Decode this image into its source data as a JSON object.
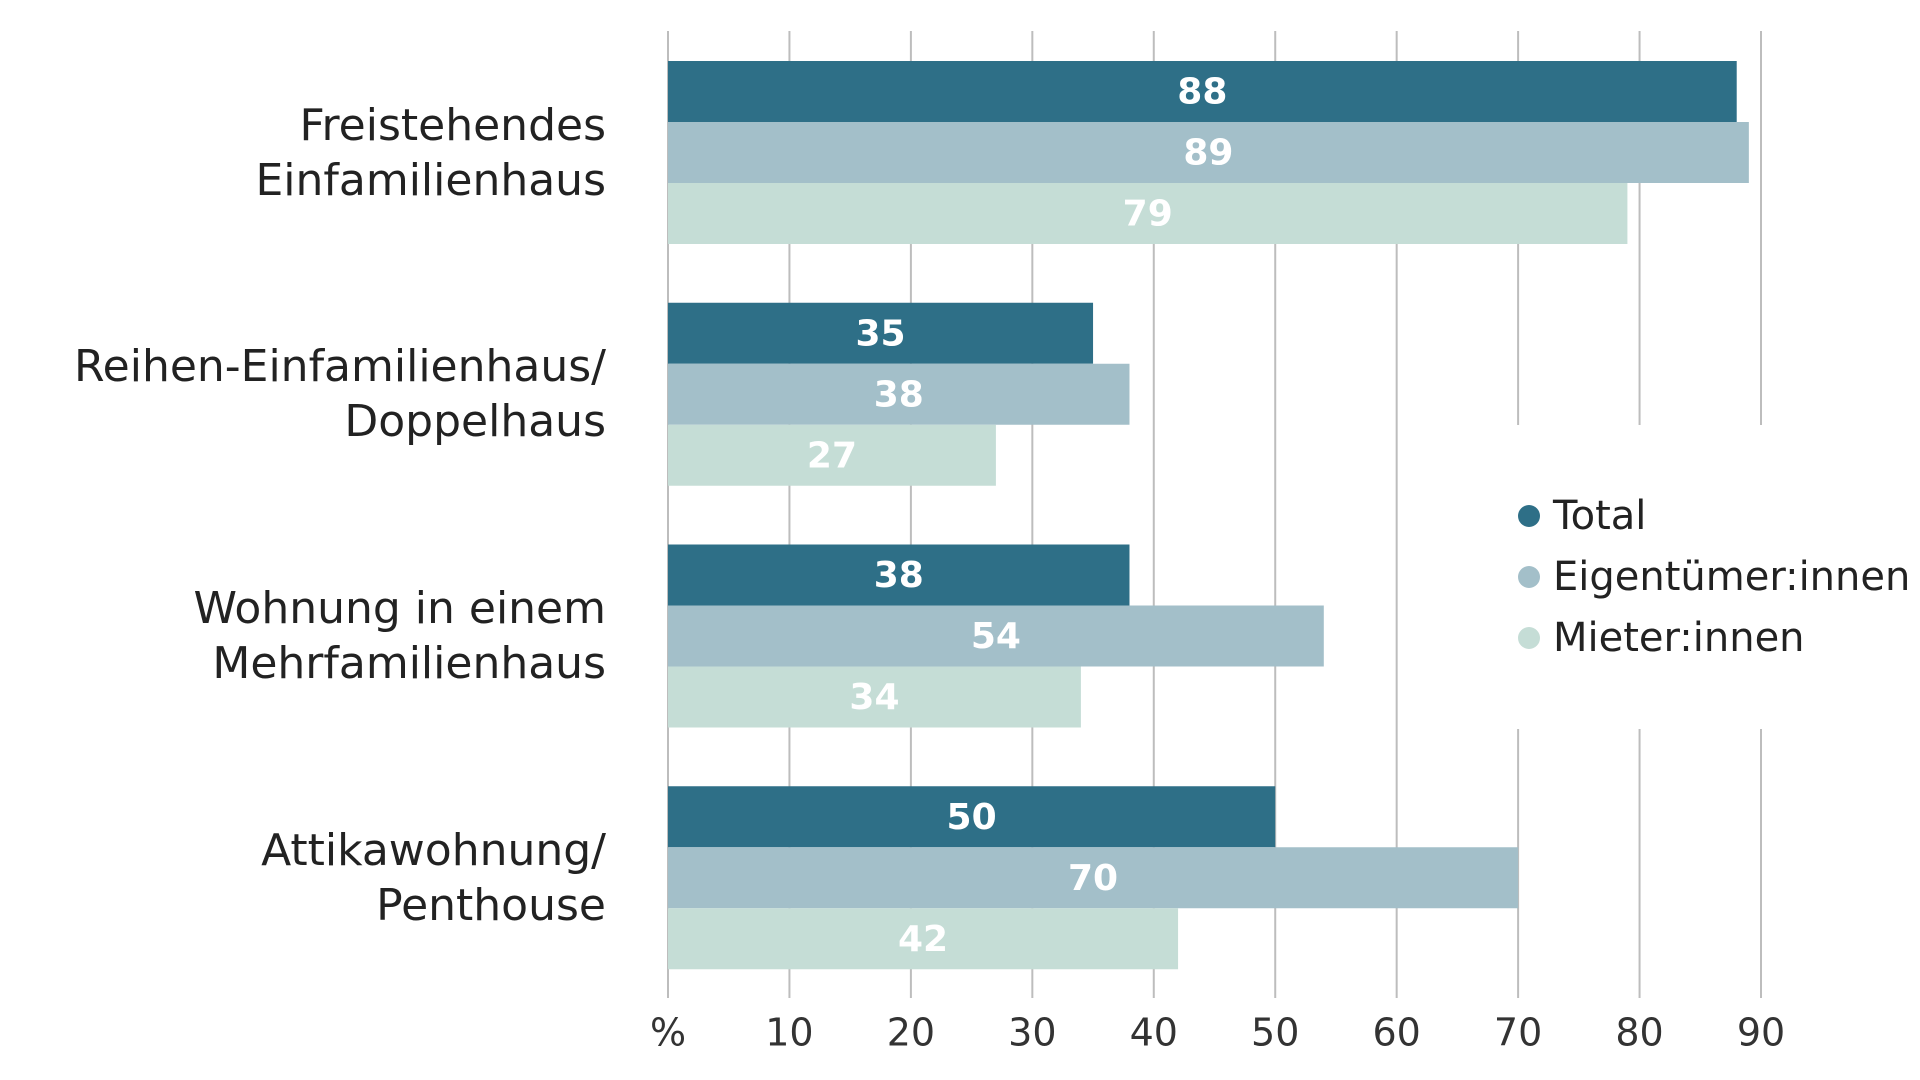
{
  "chart_data": {
    "type": "barh",
    "categories": [
      "Freistehendes\nEinfamilienhaus",
      "Reihen-Einfamilienhaus/\nDoppelhaus",
      "Wohnung in einem\nMehrfamilienhaus",
      "Attikawohnung/\nPenthouse"
    ],
    "series": [
      {
        "name": "Total",
        "color": "#2e6f87",
        "values": [
          88,
          35,
          38,
          50
        ]
      },
      {
        "name": "Eigentümer:innen",
        "color": "#a3bfc9",
        "values": [
          89,
          38,
          54,
          70
        ]
      },
      {
        "name": "Mieter:innen",
        "color": "#c5ddd6",
        "values": [
          79,
          27,
          34,
          42
        ]
      }
    ],
    "xlim": [
      0,
      90
    ],
    "xticks": [
      {
        "value": 0,
        "label": "%"
      },
      10,
      20,
      30,
      40,
      50,
      60,
      70,
      80,
      90
    ],
    "grid": true,
    "legend": "right"
  }
}
